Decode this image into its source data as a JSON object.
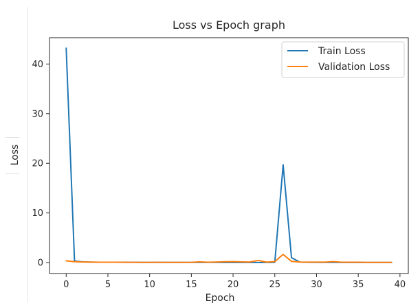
{
  "chart_data": {
    "type": "line",
    "title": "Loss vs Epoch graph",
    "xlabel": "Epoch",
    "ylabel": "Loss",
    "xlim": [
      -2,
      41
    ],
    "ylim": [
      -2.2,
      45.3
    ],
    "xticks": [
      0,
      5,
      10,
      15,
      20,
      25,
      30,
      35,
      40
    ],
    "yticks": [
      0,
      10,
      20,
      30,
      40
    ],
    "grid": false,
    "legend_position": "top-right",
    "series": [
      {
        "name": "Train Loss",
        "color": "#1f77b4",
        "x": [
          0,
          1,
          2,
          3,
          4,
          5,
          6,
          7,
          8,
          9,
          10,
          11,
          12,
          13,
          14,
          15,
          16,
          17,
          18,
          19,
          20,
          21,
          22,
          23,
          24,
          25,
          26,
          27,
          28,
          29,
          30,
          31,
          32,
          33,
          34,
          35,
          36,
          37,
          38,
          39
        ],
        "values": [
          43.2,
          0.3,
          0.15,
          0.1,
          0.08,
          0.08,
          0.07,
          0.06,
          0.06,
          0.05,
          0.05,
          0.05,
          0.04,
          0.04,
          0.04,
          0.04,
          0.04,
          0.04,
          0.04,
          0.03,
          0.03,
          0.03,
          0.03,
          0.03,
          0.03,
          0.05,
          19.7,
          1.0,
          0.1,
          0.06,
          0.05,
          0.04,
          0.04,
          0.03,
          0.03,
          0.03,
          0.03,
          0.03,
          0.03,
          0.03
        ]
      },
      {
        "name": "Validation Loss",
        "color": "#ff7f0e",
        "x": [
          0,
          1,
          2,
          3,
          4,
          5,
          6,
          7,
          8,
          9,
          10,
          11,
          12,
          13,
          14,
          15,
          16,
          17,
          18,
          19,
          20,
          21,
          22,
          23,
          24,
          25,
          26,
          27,
          28,
          29,
          30,
          31,
          32,
          33,
          34,
          35,
          36,
          37,
          38,
          39
        ],
        "values": [
          0.35,
          0.18,
          0.12,
          0.1,
          0.08,
          0.07,
          0.07,
          0.06,
          0.06,
          0.05,
          0.05,
          0.06,
          0.05,
          0.05,
          0.05,
          0.06,
          0.15,
          0.08,
          0.12,
          0.18,
          0.2,
          0.14,
          0.12,
          0.45,
          0.1,
          0.2,
          1.65,
          0.25,
          0.12,
          0.1,
          0.1,
          0.09,
          0.2,
          0.08,
          0.08,
          0.07,
          0.05,
          0.05,
          0.05,
          0.05
        ]
      }
    ]
  }
}
